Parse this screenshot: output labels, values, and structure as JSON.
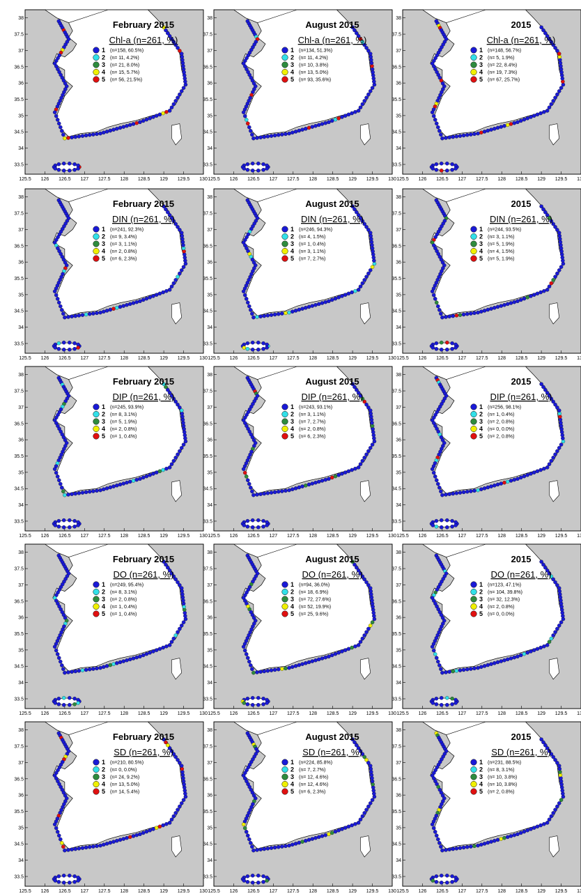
{
  "yticks": [
    "38",
    "37.5",
    "37",
    "36.5",
    "36",
    "35.5",
    "35",
    "34.5",
    "34",
    "33.5"
  ],
  "xticks": [
    "125.5",
    "126",
    "126.5",
    "127",
    "127.5",
    "128",
    "128.5",
    "129",
    "129.5",
    "130"
  ],
  "class_colors": [
    "#1a1ad6",
    "#33e0e8",
    "#2e8b3e",
    "#f0f000",
    "#e01010"
  ],
  "class_labels": [
    "1",
    "2",
    "3",
    "4",
    "5"
  ],
  "panels": [
    {
      "title": "February 2015",
      "subtitle": "Chl-a (n=261, %)",
      "dominant": [
        0,
        4,
        3
      ],
      "stats": [
        "(n=158, 60.5%)",
        "(n= 11, 4.2%)",
        "(n= 21, 8.0%)",
        "(n= 15, 5.7%)",
        "(n= 56, 21.5%)"
      ]
    },
    {
      "title": "August 2015",
      "subtitle": "Chl-a (n=261, %)",
      "dominant": [
        0,
        4,
        1
      ],
      "stats": [
        "(n=134, 51.3%)",
        "(n= 11, 4.2%)",
        "(n= 10, 3.8%)",
        "(n= 13, 5.0%)",
        "(n= 93, 35.6%)"
      ]
    },
    {
      "title": "2015",
      "subtitle": "Chl-a (n=261, %)",
      "dominant": [
        0,
        4,
        3
      ],
      "stats": [
        "(n=148, 56.7%)",
        "(n= 5, 1.9%)",
        "(n= 22, 8.4%)",
        "(n= 19, 7.3%)",
        "(n= 67, 25.7%)"
      ]
    },
    {
      "title": "February 2015",
      "subtitle": "DIN (n=261, %)",
      "dominant": [
        0,
        1,
        4
      ],
      "stats": [
        "(n=241, 92.3%)",
        "(n= 9, 3.4%)",
        "(n= 3, 1.1%)",
        "(n= 2, 0.8%)",
        "(n= 6, 2.3%)"
      ]
    },
    {
      "title": "August 2015",
      "subtitle": "DIN (n=261, %)",
      "dominant": [
        0,
        1,
        3
      ],
      "stats": [
        "(n=246, 94.3%)",
        "(n= 4, 1.5%)",
        "(n= 1, 0.4%)",
        "(n= 3, 1.1%)",
        "(n= 7, 2.7%)"
      ]
    },
    {
      "title": "2015",
      "subtitle": "DIN (n=261, %)",
      "dominant": [
        0,
        2,
        4
      ],
      "stats": [
        "(n=244, 93.5%)",
        "(n= 3, 1.1%)",
        "(n= 5, 1.9%)",
        "(n= 4, 1.5%)",
        "(n= 5, 1.9%)"
      ]
    },
    {
      "title": "February 2015",
      "subtitle": "DIP (n=261, %)",
      "dominant": [
        0,
        1,
        2
      ],
      "stats": [
        "(n=245, 93.9%)",
        "(n= 8, 3.1%)",
        "(n= 5, 1.9%)",
        "(n= 2, 0.8%)",
        "(n= 1, 0.4%)"
      ]
    },
    {
      "title": "August 2015",
      "subtitle": "DIP (n=261, %)",
      "dominant": [
        0,
        2,
        4
      ],
      "stats": [
        "(n=243, 93.1%)",
        "(n= 3, 1.1%)",
        "(n= 7, 2.7%)",
        "(n= 2, 0.8%)",
        "(n= 6, 2.3%)"
      ]
    },
    {
      "title": "2015",
      "subtitle": "DIP (n=261, %)",
      "dominant": [
        0,
        1,
        4
      ],
      "stats": [
        "(n=256, 98.1%)",
        "(n= 1, 0.4%)",
        "(n= 2, 0.8%)",
        "(n= 0, 0.0%)",
        "(n= 2, 0.8%)"
      ]
    },
    {
      "title": "February 2015",
      "subtitle": "DO (n=261, %)",
      "dominant": [
        0,
        1,
        2
      ],
      "stats": [
        "(n=249, 95.4%)",
        "(n= 8, 3.1%)",
        "(n= 2, 0.8%)",
        "(n= 1, 0.4%)",
        "(n= 1, 0.4%)"
      ]
    },
    {
      "title": "August 2015",
      "subtitle": "DO (n=261, %)",
      "dominant": [
        0,
        2,
        3
      ],
      "stats": [
        "(n=94, 36.0%)",
        "(n= 18, 6.9%)",
        "(n= 72, 27.6%)",
        "(n= 52, 19.9%)",
        "(n= 25, 9.6%)"
      ]
    },
    {
      "title": "2015",
      "subtitle": "DO (n=261, %)",
      "dominant": [
        0,
        1,
        2
      ],
      "stats": [
        "(n=123, 47.1%)",
        "(n= 104, 39.8%)",
        "(n= 32, 12.3%)",
        "(n= 2, 0.8%)",
        "(n= 0, 0.0%)"
      ]
    },
    {
      "title": "February 2015",
      "subtitle": "SD (n=261, %)",
      "dominant": [
        0,
        4,
        3
      ],
      "stats": [
        "(n=210, 80.5%)",
        "(n= 0, 0.0%)",
        "(n= 24, 9.2%)",
        "(n= 13, 5.0%)",
        "(n= 14, 5.4%)"
      ]
    },
    {
      "title": "August 2015",
      "subtitle": "SD (n=261, %)",
      "dominant": [
        0,
        2,
        3
      ],
      "stats": [
        "(n=224, 85.8%)",
        "(n= 7, 2.7%)",
        "(n= 12, 4.6%)",
        "(n= 12, 4.6%)",
        "(n= 6, 2.3%)"
      ]
    },
    {
      "title": "2015",
      "subtitle": "SD (n=261, %)",
      "dominant": [
        0,
        2,
        3
      ],
      "stats": [
        "(n=231, 88.5%)",
        "(n= 8, 3.1%)",
        "(n= 10, 3.8%)",
        "(n= 10, 3.8%)",
        "(n= 2, 0.8%)"
      ]
    }
  ]
}
